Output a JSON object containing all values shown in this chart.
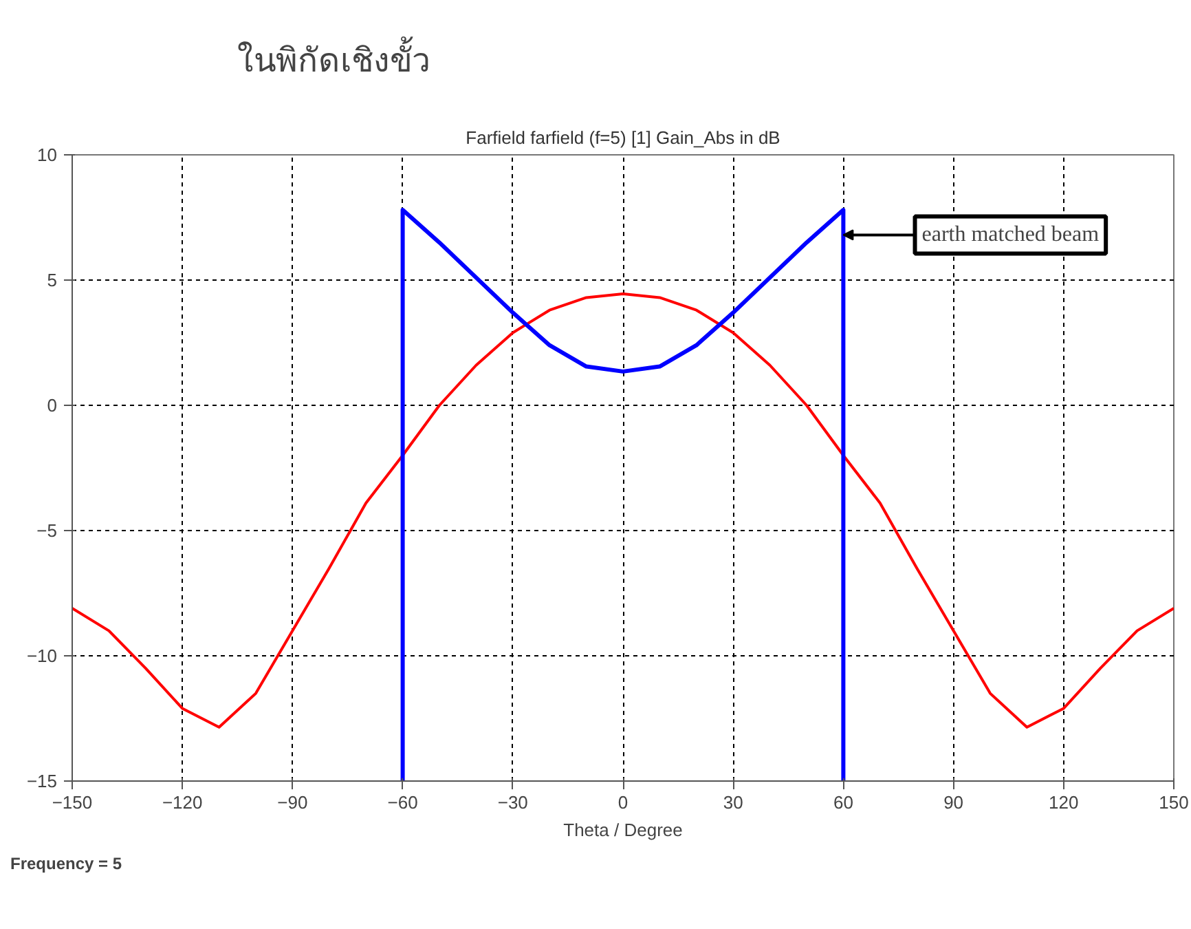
{
  "chart_data": {
    "type": "line",
    "title": "Farfield farfield (f=5) [1] Gain_Abs in dB",
    "xlabel": "Theta / Degree",
    "xlim": [
      -150,
      150
    ],
    "xticks": [
      -150,
      -120,
      -90,
      -60,
      -30,
      0,
      30,
      60,
      90,
      120,
      150
    ],
    "ylim": [
      -15,
      10
    ],
    "yticks": [
      -15,
      -10,
      -5,
      0,
      5,
      10
    ],
    "grid": true,
    "line_style": "solid",
    "series": [
      {
        "color": "#ff0000",
        "x": [
          -150,
          -140,
          -130,
          -120,
          -110,
          -100,
          -90,
          -80,
          -70,
          -60,
          -50,
          -40,
          -30,
          -20,
          -10,
          0,
          10,
          20,
          30,
          40,
          50,
          60,
          70,
          80,
          90,
          100,
          110,
          120,
          130,
          140,
          150
        ],
        "values": [
          -8.1,
          -9.0,
          -10.5,
          -12.1,
          -12.85,
          -11.5,
          -9.0,
          -6.5,
          -3.9,
          -2.0,
          0.0,
          1.6,
          2.9,
          3.8,
          4.3,
          4.45,
          4.3,
          3.8,
          2.9,
          1.6,
          0.0,
          -2.0,
          -3.9,
          -6.5,
          -9.0,
          -11.5,
          -12.85,
          -12.1,
          -10.5,
          -9.0,
          -8.1
        ]
      },
      {
        "color": "#0000ff",
        "x": [
          -60,
          -60,
          -50,
          -40,
          -30,
          -20,
          -10,
          0,
          10,
          20,
          30,
          40,
          50,
          60,
          60
        ],
        "values": [
          -15,
          7.8,
          6.5,
          5.1,
          3.7,
          2.4,
          1.55,
          1.35,
          1.55,
          2.4,
          3.7,
          5.1,
          6.5,
          7.8,
          -15
        ]
      }
    ],
    "annotations": [
      {
        "text": "earth matched beam",
        "x": 60,
        "y": 6.8
      },
      "ในพิกัดเชิงขั้ว",
      "Frequency = 5"
    ]
  }
}
